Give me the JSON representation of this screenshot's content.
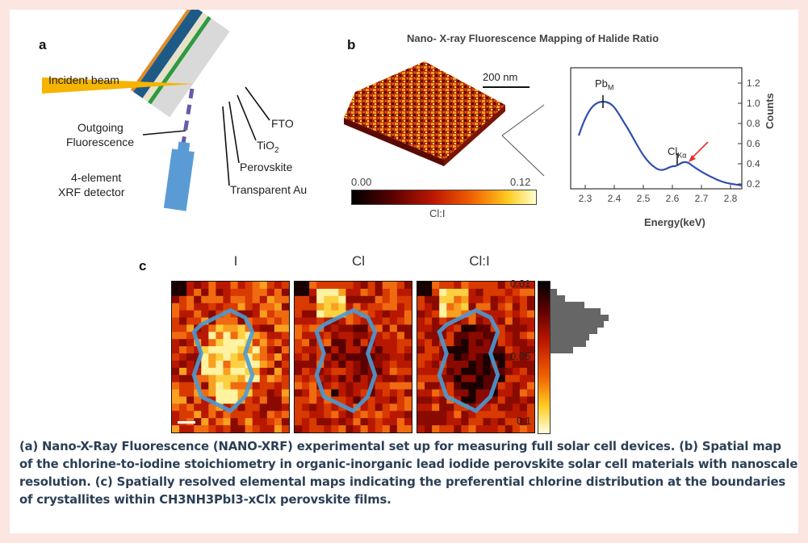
{
  "panel_a": {
    "letter": "a",
    "incident_beam": "Incident beam",
    "outgoing_line1": "Outgoing",
    "outgoing_line2": "Fluorescence",
    "detector_line1": "4-element",
    "detector_line2": "XRF detector",
    "fto": "FTO",
    "tio2": "TiO",
    "tio2_sub": "2",
    "perovskite": "Perovskite",
    "gold": "Transparent Au"
  },
  "panel_b": {
    "letter": "b",
    "title": "Nano- X-ray Fluorescence Mapping of Halide Ratio",
    "scalebar": "200 nm",
    "colorbar_min": "0.00",
    "colorbar_max": "0.12",
    "colorbar_label": "Cl:I",
    "spectrum": {
      "xlabel": "Energy(keV)",
      "ylabel": "Counts",
      "xticks": [
        "2.3",
        "2.4",
        "2.5",
        "2.6",
        "2.7",
        "2.8"
      ],
      "yticks": [
        "0.2",
        "0.4",
        "0.6",
        "0.8",
        "1.0",
        "1.2"
      ],
      "peak1_main": "Pb",
      "peak1_sub": "M",
      "peak2_main": "Cl",
      "peak2_sub": "Kα"
    }
  },
  "panel_c": {
    "letter": "c",
    "titles": [
      "I",
      "Cl",
      "Cl:I"
    ],
    "colorbar_ticks": [
      "0.01",
      "0.05",
      "0.1"
    ]
  },
  "caption": "(a) Nano-X-Ray Fluorescence (NANO-XRF) experimental set up for measuring full solar cell devices. (b) Spatial map of the chlorine-to-iodine stoichiometry in organic-inorganic lead iodide perovskite solar cell materials with nanoscale resolution. (c) Spatially resolved elemental maps indicating the preferential chlorine distribution at the boundaries of crystallites within CH3NH3PbI3-xClx perovskite films.",
  "colors": {
    "beam": "#f5b400",
    "fto": "#d9d9d9",
    "green_layer": "#2e9a3f",
    "perovskite_layer": "#1e5a86",
    "gold_layer": "#e08a2a",
    "detector": "#5b9bd5",
    "spectrum_line": "#2f4fb0",
    "arrow": "#e53030",
    "grain_outline": "#4a9ad4",
    "caption_text": "#2b3f55"
  }
}
